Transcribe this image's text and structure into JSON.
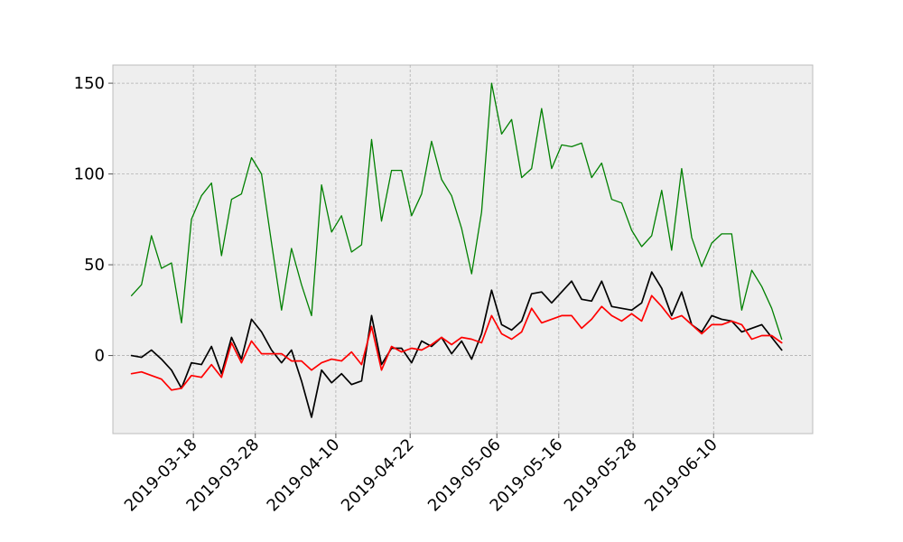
{
  "chart_data": {
    "type": "line",
    "title": "",
    "xlabel": "",
    "ylabel": "",
    "x_start": "2019-03-08",
    "x_end": "2019-06-21",
    "xlim": [
      "2019-03-05",
      "2019-06-26"
    ],
    "ylim": [
      -43,
      160
    ],
    "y_ticks": [
      0,
      50,
      100,
      150
    ],
    "y_tick_labels": [
      "0",
      "50",
      "100",
      "150"
    ],
    "x_ticks": [
      "2019-03-18",
      "2019-03-28",
      "2019-04-10",
      "2019-04-22",
      "2019-05-06",
      "2019-05-16",
      "2019-05-28",
      "2019-06-10"
    ],
    "grid": true,
    "background": "#eeeeee",
    "series": [
      {
        "color": "#008000",
        "values": [
          33,
          39,
          66,
          48,
          51,
          18,
          75,
          88,
          95,
          55,
          86,
          89,
          109,
          100,
          62,
          25,
          59,
          39,
          22,
          94,
          68,
          77,
          57,
          61,
          119,
          74,
          102,
          102,
          77,
          89,
          118,
          97,
          88,
          70,
          45,
          79,
          150,
          122,
          130,
          98,
          103,
          136,
          103,
          116,
          115,
          117,
          98,
          106,
          86,
          84,
          69,
          60,
          66,
          91,
          58,
          103,
          65,
          49,
          62,
          67,
          67,
          25,
          47,
          38,
          26,
          9
        ]
      },
      {
        "color": "#000000",
        "values": [
          0,
          -1,
          3,
          -2,
          -8,
          -18,
          -4,
          -5,
          5,
          -10,
          10,
          -2,
          20,
          13,
          3,
          -4,
          3,
          -14,
          -34,
          -8,
          -15,
          -10,
          -16,
          -14,
          22,
          -5,
          4,
          4,
          -4,
          8,
          5,
          10,
          1,
          8,
          -2,
          12,
          36,
          17,
          14,
          19,
          34,
          35,
          29,
          35,
          41,
          31,
          30,
          41,
          27,
          26,
          25,
          29,
          46,
          37,
          22,
          35,
          17,
          13,
          22,
          20,
          19,
          13,
          15,
          17,
          10,
          3
        ]
      },
      {
        "color": "#ff0000",
        "values": [
          -10,
          -9,
          -11,
          -13,
          -19,
          -18,
          -11,
          -12,
          -5,
          -12,
          7,
          -4,
          8,
          1,
          1,
          1,
          -3,
          -3,
          -8,
          -4,
          -2,
          -3,
          2,
          -5,
          16,
          -8,
          5,
          2,
          4,
          3,
          6,
          10,
          6,
          10,
          9,
          7,
          22,
          12,
          9,
          13,
          26,
          18,
          20,
          22,
          22,
          15,
          20,
          27,
          22,
          19,
          23,
          19,
          33,
          27,
          20,
          22,
          17,
          12,
          17,
          17,
          19,
          17,
          9,
          11,
          11,
          7
        ]
      }
    ]
  }
}
